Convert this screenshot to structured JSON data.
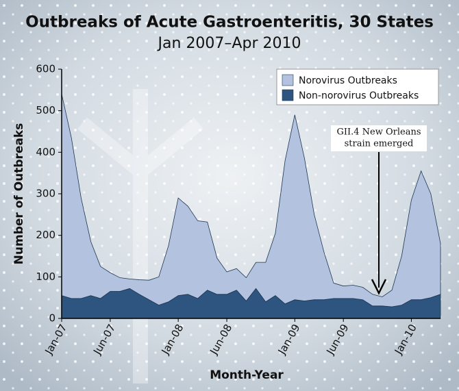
{
  "chart_data": {
    "type": "stacked_area",
    "title": "Outbreaks of Acute Gastroenteritis, 30 States",
    "subtitle": "Jan 2007–Apr 2010",
    "xlabel": "Month-Year",
    "ylabel": "Number of Outbreaks",
    "categories": [
      "Jan-07",
      null,
      null,
      null,
      null,
      "Jun-07",
      null,
      null,
      null,
      null,
      null,
      null,
      "Jan-08",
      null,
      null,
      null,
      null,
      "Jun-08",
      null,
      null,
      null,
      null,
      null,
      null,
      "Jan-09",
      null,
      null,
      null,
      null,
      "Jun-09",
      null,
      null,
      null,
      null,
      null,
      null,
      "Jan-10",
      null,
      null,
      null
    ],
    "series": [
      {
        "name": "Non-norovirus Outbreaks",
        "color": "#2d5580",
        "values": [
          55,
          48,
          48,
          55,
          48,
          65,
          65,
          72,
          58,
          45,
          32,
          40,
          55,
          58,
          48,
          68,
          58,
          58,
          68,
          42,
          72,
          40,
          55,
          35,
          45,
          42,
          45,
          45,
          48,
          48,
          48,
          45,
          30,
          30,
          28,
          32,
          45,
          45,
          50,
          58
        ]
      },
      {
        "name": "Norovirus Outbreaks",
        "color": "#b3c3df",
        "values": [
          485,
          387,
          242,
          130,
          77,
          45,
          33,
          23,
          35,
          47,
          68,
          135,
          235,
          212,
          187,
          164,
          87,
          54,
          52,
          56,
          63,
          95,
          150,
          345,
          445,
          343,
          205,
          115,
          37,
          30,
          32,
          30,
          28,
          22,
          40,
          118,
          240,
          310,
          250,
          122
        ]
      }
    ],
    "ylim": [
      0,
      600
    ],
    "yticks": [
      0,
      100,
      200,
      300,
      400,
      500,
      600
    ],
    "legend": "top-right",
    "annotation": [
      "GII.4 New Orleans",
      "strain emerged"
    ]
  }
}
